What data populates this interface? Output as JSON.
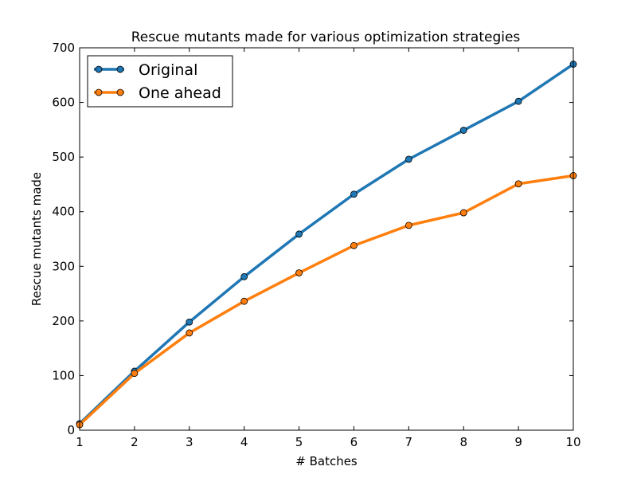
{
  "chart_data": {
    "type": "line",
    "title": "Rescue mutants made for various optimization strategies",
    "xlabel": "# Batches",
    "ylabel": "Rescue mutants made",
    "xlim": [
      1,
      10
    ],
    "ylim": [
      0,
      700
    ],
    "x_ticks": [
      1,
      2,
      3,
      4,
      5,
      6,
      7,
      8,
      9,
      10
    ],
    "y_ticks": [
      0,
      100,
      200,
      300,
      400,
      500,
      600,
      700
    ],
    "x": [
      1,
      2,
      3,
      4,
      5,
      6,
      7,
      8,
      9,
      10
    ],
    "series": [
      {
        "name": "Original",
        "color": "#1f77b4",
        "values": [
          12,
          108,
          198,
          281,
          359,
          432,
          496,
          549,
          602,
          670
        ]
      },
      {
        "name": "One ahead",
        "color": "#ff7f0e",
        "values": [
          10,
          104,
          178,
          236,
          288,
          338,
          375,
          398,
          451,
          466
        ]
      }
    ],
    "legend_position": "top-left",
    "grid": false
  }
}
